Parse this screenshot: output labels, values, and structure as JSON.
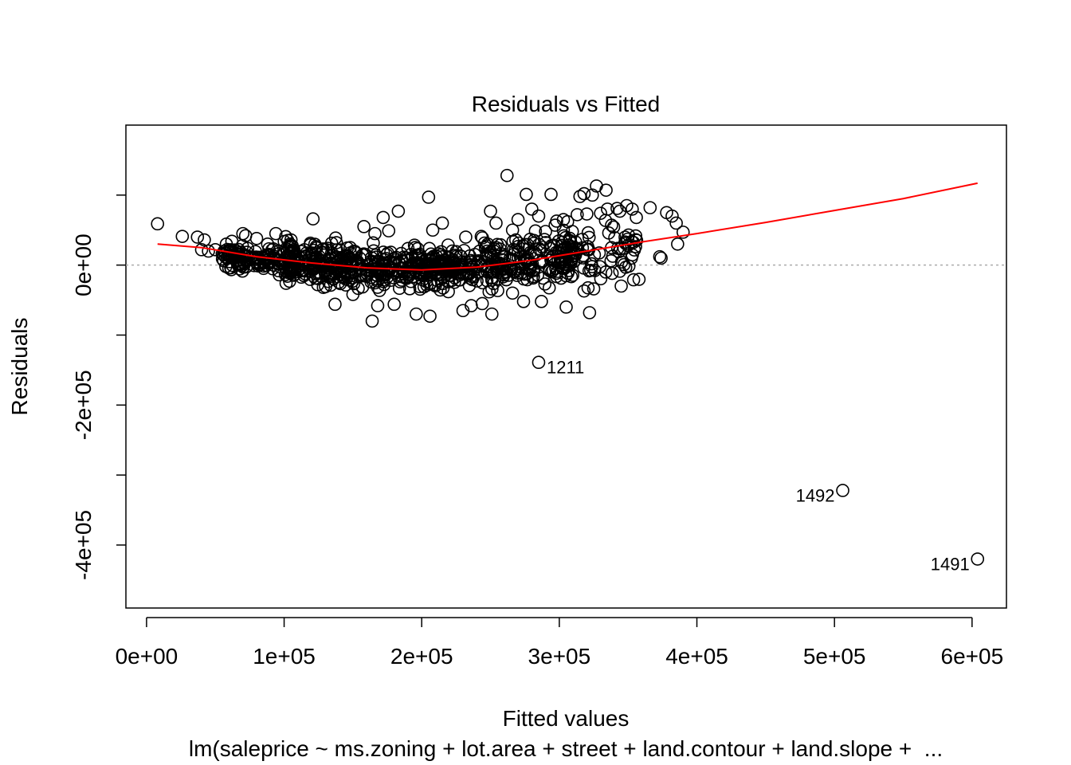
{
  "chart_data": {
    "type": "scatter",
    "title": "Residuals vs Fitted",
    "xlabel": "Fitted values",
    "ylabel": "Residuals",
    "subtitle": "lm(saleprice ~ ms.zoning + lot.area + street + land.contour + land.slope +  ...",
    "xlim": [
      -15000,
      625000
    ],
    "ylim": [
      -490000,
      200000
    ],
    "x_ticks": [
      0,
      100000,
      200000,
      300000,
      400000,
      500000,
      600000
    ],
    "x_tick_labels": [
      "0e+00",
      "1e+05",
      "2e+05",
      "3e+05",
      "4e+05",
      "5e+05",
      "6e+05"
    ],
    "y_ticks": [
      -400000,
      -300000,
      -200000,
      -100000,
      0,
      100000
    ],
    "y_tick_labels": [
      "-4e+05",
      "",
      "-2e+05",
      "",
      "0e+00",
      ""
    ],
    "reference_line": {
      "y": 0,
      "style": "dotted",
      "color": "#aaaaaa"
    },
    "point_color": "#000000",
    "smooth_color": "#ff0000",
    "points": [
      [
        8000,
        59000
      ],
      [
        26000,
        41000
      ],
      [
        37000,
        40000
      ],
      [
        42000,
        36000
      ],
      [
        40000,
        22000
      ],
      [
        45000,
        20000
      ],
      [
        50000,
        22000
      ],
      [
        55000,
        16000
      ],
      [
        58000,
        30000
      ],
      [
        62000,
        34000
      ],
      [
        70000,
        45000
      ],
      [
        72000,
        42000
      ],
      [
        80000,
        38000
      ],
      [
        88000,
        30000
      ],
      [
        94000,
        45000
      ],
      [
        105000,
        36000
      ],
      [
        121000,
        66000
      ],
      [
        138000,
        32000
      ],
      [
        158000,
        55000
      ],
      [
        166000,
        45000
      ],
      [
        172000,
        68000
      ],
      [
        176000,
        49000
      ],
      [
        183000,
        77000
      ],
      [
        205000,
        97000
      ],
      [
        208000,
        50000
      ],
      [
        215000,
        60000
      ],
      [
        232000,
        40000
      ],
      [
        250000,
        77000
      ],
      [
        254000,
        60000
      ],
      [
        262000,
        128000
      ],
      [
        266000,
        50000
      ],
      [
        270000,
        65000
      ],
      [
        276000,
        101000
      ],
      [
        280000,
        80000
      ],
      [
        285000,
        70000
      ],
      [
        290000,
        48000
      ],
      [
        294000,
        101000
      ],
      [
        297000,
        57000
      ],
      [
        303000,
        65000
      ],
      [
        306000,
        62000
      ],
      [
        313000,
        72000
      ],
      [
        315000,
        98000
      ],
      [
        318000,
        102000
      ],
      [
        320000,
        73000
      ],
      [
        324000,
        100000
      ],
      [
        327000,
        113000
      ],
      [
        330000,
        74000
      ],
      [
        334000,
        107000
      ],
      [
        335000,
        80000
      ],
      [
        338000,
        57000
      ],
      [
        342000,
        81000
      ],
      [
        344000,
        77000
      ],
      [
        349000,
        85000
      ],
      [
        353000,
        80000
      ],
      [
        356000,
        68000
      ],
      [
        366000,
        82000
      ],
      [
        373000,
        12000
      ],
      [
        374000,
        10000
      ],
      [
        378000,
        75000
      ],
      [
        382000,
        70000
      ],
      [
        385000,
        60000
      ],
      [
        386000,
        30000
      ],
      [
        390000,
        47000
      ],
      [
        164000,
        -80000
      ],
      [
        168000,
        -58000
      ],
      [
        180000,
        -56000
      ],
      [
        196000,
        -70000
      ],
      [
        206000,
        -73000
      ],
      [
        230000,
        -65000
      ],
      [
        236000,
        -58000
      ],
      [
        244000,
        -55000
      ],
      [
        251000,
        -70000
      ],
      [
        266000,
        -40000
      ],
      [
        274000,
        -52000
      ],
      [
        287000,
        -52000
      ],
      [
        305000,
        -60000
      ],
      [
        318000,
        -37000
      ],
      [
        322000,
        -68000
      ],
      [
        325000,
        -34000
      ],
      [
        345000,
        -30000
      ],
      [
        354000,
        -21000
      ],
      [
        137000,
        -56000
      ],
      [
        150000,
        -42000
      ],
      [
        285000,
        -139000
      ],
      [
        506000,
        -322000
      ],
      [
        604000,
        -420000
      ]
    ],
    "labeled_points": [
      {
        "label": "1211",
        "x": 285000,
        "y": -139000
      },
      {
        "label": "1492",
        "x": 506000,
        "y": -322000
      },
      {
        "label": "1491",
        "x": 604000,
        "y": -420000
      }
    ],
    "smooth": [
      [
        8000,
        30000
      ],
      [
        40000,
        25000
      ],
      [
        80000,
        12000
      ],
      [
        120000,
        3000
      ],
      [
        160000,
        -4000
      ],
      [
        200000,
        -7000
      ],
      [
        240000,
        -3000
      ],
      [
        280000,
        7000
      ],
      [
        320000,
        20000
      ],
      [
        360000,
        33000
      ],
      [
        400000,
        45000
      ],
      [
        450000,
        61000
      ],
      [
        500000,
        78000
      ],
      [
        550000,
        95000
      ],
      [
        604000,
        117000
      ]
    ]
  }
}
